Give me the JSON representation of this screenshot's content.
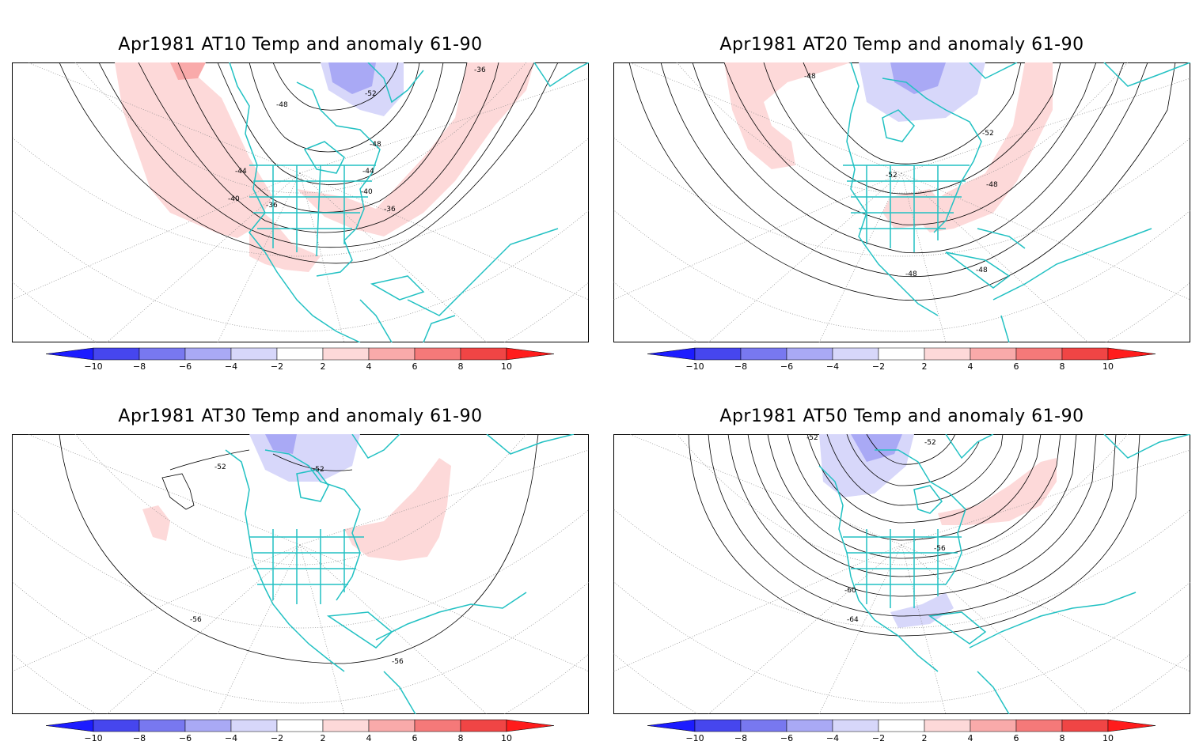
{
  "colors": {
    "coast": "#22c1c3",
    "contour": "#000000",
    "grid": "#8a8a8a",
    "pos": [
      "#fdd9d9",
      "#f9aaaa",
      "#f57979",
      "#f04545",
      "#ff1c1c"
    ],
    "neg": [
      "#d7d7fa",
      "#a9a9f5",
      "#7878f0",
      "#4646ee",
      "#1c1cff"
    ]
  },
  "colorbar": {
    "levels": [
      "-10",
      "-8",
      "-6",
      "-4",
      "-2",
      "2",
      "4",
      "6",
      "8",
      "10"
    ]
  },
  "panels": [
    {
      "title": "Apr1981 AT10 Temp and anomaly 61-90",
      "contour_labels": [
        "-36",
        "-52",
        "-48",
        "-48",
        "-44",
        "-44",
        "-40",
        "-40",
        "-36",
        "-36"
      ]
    },
    {
      "title": "Apr1981 AT20 Temp and anomaly 61-90",
      "contour_labels": [
        "-48",
        "-52",
        "-52",
        "-48",
        "-48",
        "-48"
      ]
    },
    {
      "title": "Apr1981 AT30 Temp and anomaly 61-90",
      "contour_labels": [
        "-52",
        "-52",
        "-56",
        "-56"
      ]
    },
    {
      "title": "Apr1981 AT50 Temp and anomaly 61-90",
      "contour_labels": [
        "-52",
        "-52",
        "-56",
        "-60",
        "-64"
      ]
    }
  ]
}
